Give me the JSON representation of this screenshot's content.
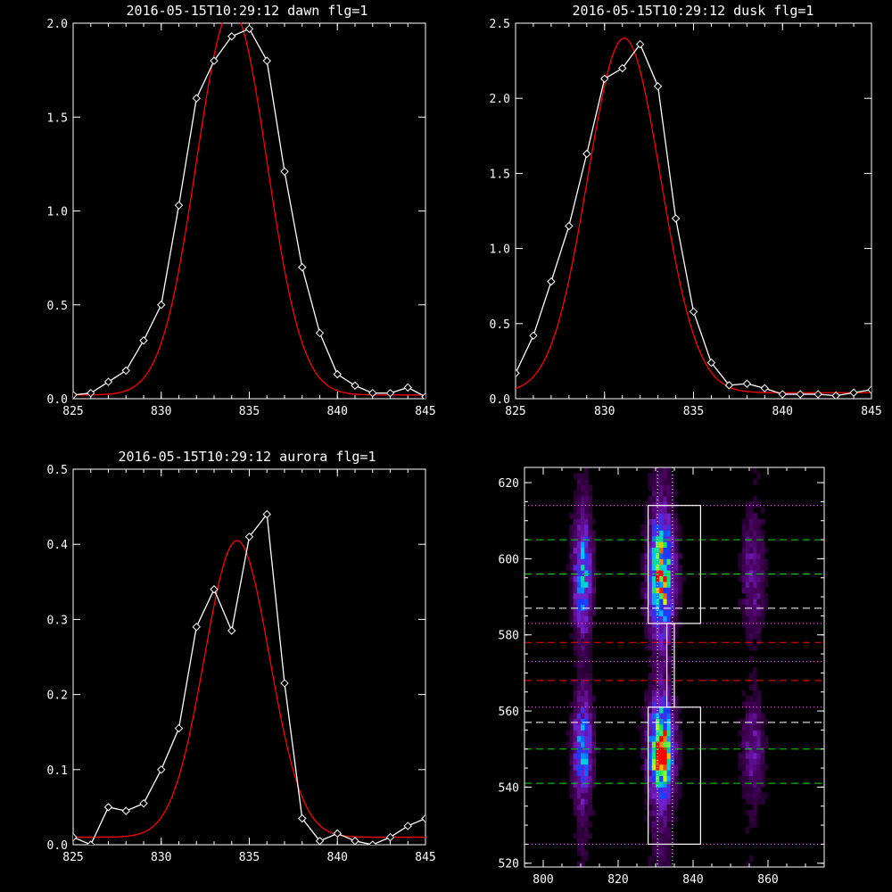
{
  "chart_data": [
    {
      "type": "line",
      "title": "2016-05-15T10:29:12 dawn flg=1",
      "xlim": [
        825,
        845
      ],
      "ylim": [
        0,
        2.0
      ],
      "xticks": [
        825,
        830,
        835,
        840,
        845
      ],
      "yticks": [
        0.0,
        0.5,
        1.0,
        1.5,
        2.0
      ],
      "ytick_labels": [
        "0.0",
        "0.5",
        "1.0",
        "1.5",
        "2.0"
      ],
      "series": [
        {
          "color": "#ffffff",
          "marker": "diamond",
          "x": [
            825,
            826,
            827,
            828,
            829,
            830,
            831,
            832,
            833,
            834,
            835,
            836,
            837,
            838,
            839,
            840,
            841,
            842,
            843,
            844,
            845
          ],
          "y": [
            0.02,
            0.03,
            0.09,
            0.15,
            0.31,
            0.5,
            1.03,
            1.6,
            1.8,
            1.93,
            1.97,
            1.8,
            1.21,
            0.7,
            0.35,
            0.13,
            0.07,
            0.03,
            0.03,
            0.06,
            0.01
          ]
        },
        {
          "color": "#ff0000",
          "fit": "gaussian",
          "amplitude": 2.05,
          "center": 834.0,
          "sigma": 2.0,
          "baseline": 0.02
        }
      ]
    },
    {
      "type": "line",
      "title": "2016-05-15T10:29:12 dusk flg=1",
      "xlim": [
        825,
        845
      ],
      "ylim": [
        0,
        2.5
      ],
      "xticks": [
        825,
        830,
        835,
        840,
        845
      ],
      "yticks": [
        0.0,
        0.5,
        1.0,
        1.5,
        2.0,
        2.5
      ],
      "ytick_labels": [
        "0.0",
        "0.5",
        "1.0",
        "1.5",
        "2.0",
        "2.5"
      ],
      "series": [
        {
          "color": "#ffffff",
          "marker": "diamond",
          "x": [
            825,
            826,
            827,
            828,
            829,
            830,
            831,
            832,
            833,
            834,
            835,
            836,
            837,
            838,
            839,
            840,
            841,
            842,
            843,
            844,
            845
          ],
          "y": [
            0.17,
            0.42,
            0.78,
            1.15,
            1.63,
            2.13,
            2.2,
            2.36,
            2.08,
            1.2,
            0.58,
            0.24,
            0.09,
            0.1,
            0.07,
            0.03,
            0.03,
            0.03,
            0.02,
            0.04,
            0.06
          ]
        },
        {
          "color": "#ff0000",
          "fit": "gaussian",
          "amplitude": 2.36,
          "center": 831.1,
          "sigma": 2.05,
          "baseline": 0.04
        }
      ]
    },
    {
      "type": "line",
      "title": "2016-05-15T10:29:12 aurora flg=1",
      "xlim": [
        825,
        845
      ],
      "ylim": [
        0,
        0.5
      ],
      "xticks": [
        825,
        830,
        835,
        840,
        845
      ],
      "yticks": [
        0.0,
        0.1,
        0.2,
        0.3,
        0.4,
        0.5
      ],
      "ytick_labels": [
        "0.0",
        "0.1",
        "0.2",
        "0.3",
        "0.4",
        "0.5"
      ],
      "series": [
        {
          "color": "#ffffff",
          "marker": "diamond",
          "x": [
            825,
            826,
            827,
            828,
            829,
            830,
            831,
            832,
            833,
            834,
            835,
            836,
            837,
            838,
            839,
            840,
            841,
            842,
            843,
            844,
            845
          ],
          "y": [
            0.01,
            0.0,
            0.05,
            0.045,
            0.055,
            0.1,
            0.155,
            0.29,
            0.34,
            0.285,
            0.41,
            0.44,
            0.215,
            0.035,
            0.005,
            0.015,
            0.005,
            0.0,
            0.01,
            0.025,
            0.035
          ]
        },
        {
          "color": "#ff0000",
          "fit": "gaussian",
          "amplitude": 0.395,
          "center": 834.3,
          "sigma": 1.85,
          "baseline": 0.01
        }
      ]
    },
    {
      "type": "heatmap",
      "colormap": "rainbow (black-purple-blue-green-yellow-red)",
      "xlim": [
        795,
        875
      ],
      "ylim": [
        519,
        624
      ],
      "xticks": [
        800,
        820,
        840,
        860
      ],
      "yticks": [
        520,
        540,
        560,
        580,
        600,
        620
      ],
      "emission_columns": [
        {
          "x_center": 810.5,
          "x_sigma": 1.8,
          "weight": 0.65
        },
        {
          "x_center": 831.5,
          "x_sigma": 2.4,
          "weight": 1.0
        },
        {
          "x_center": 856,
          "x_sigma": 2.2,
          "weight": 0.3
        }
      ],
      "emission_blobs": [
        {
          "y_center": 596,
          "y_sigma": 10
        },
        {
          "y_center": 550,
          "y_sigma": 9
        }
      ],
      "peak": {
        "x": 831,
        "y": 547
      },
      "boxes": [
        {
          "x0": 828,
          "x1": 842,
          "y0": 583,
          "y1": 614,
          "color": "#ffffff"
        },
        {
          "x0": 828,
          "x1": 842,
          "y0": 525,
          "y1": 561,
          "color": "#ffffff"
        },
        {
          "x0": 833,
          "x1": 835,
          "y0": 561,
          "y1": 583,
          "color": "#ffffff"
        }
      ],
      "vlines": [
        {
          "x": 830.5,
          "color": "#ffffff",
          "style": "dotted"
        },
        {
          "x": 834.5,
          "color": "#ffffff",
          "style": "dotted"
        }
      ],
      "hlines": [
        {
          "y": 614,
          "color": "#ff66ff",
          "style": "dotted"
        },
        {
          "y": 605,
          "color": "#00dd00",
          "style": "dashed"
        },
        {
          "y": 596,
          "color": "#00dd00",
          "style": "dashed"
        },
        {
          "y": 587,
          "color": "#ffffff",
          "style": "dashed"
        },
        {
          "y": 583,
          "color": "#ff66ff",
          "style": "dotted"
        },
        {
          "y": 578,
          "color": "#ff0000",
          "style": "dashed"
        },
        {
          "y": 573,
          "color": "#ff66ff",
          "style": "dotted"
        },
        {
          "y": 568,
          "color": "#ff0000",
          "style": "dashed"
        },
        {
          "y": 561,
          "color": "#ff66ff",
          "style": "dotted"
        },
        {
          "y": 557,
          "color": "#ffffff",
          "style": "dashed"
        },
        {
          "y": 550,
          "color": "#00dd00",
          "style": "dashed"
        },
        {
          "y": 541,
          "color": "#00dd00",
          "style": "dashed"
        },
        {
          "y": 525,
          "color": "#ff66ff",
          "style": "dotted"
        }
      ]
    }
  ]
}
